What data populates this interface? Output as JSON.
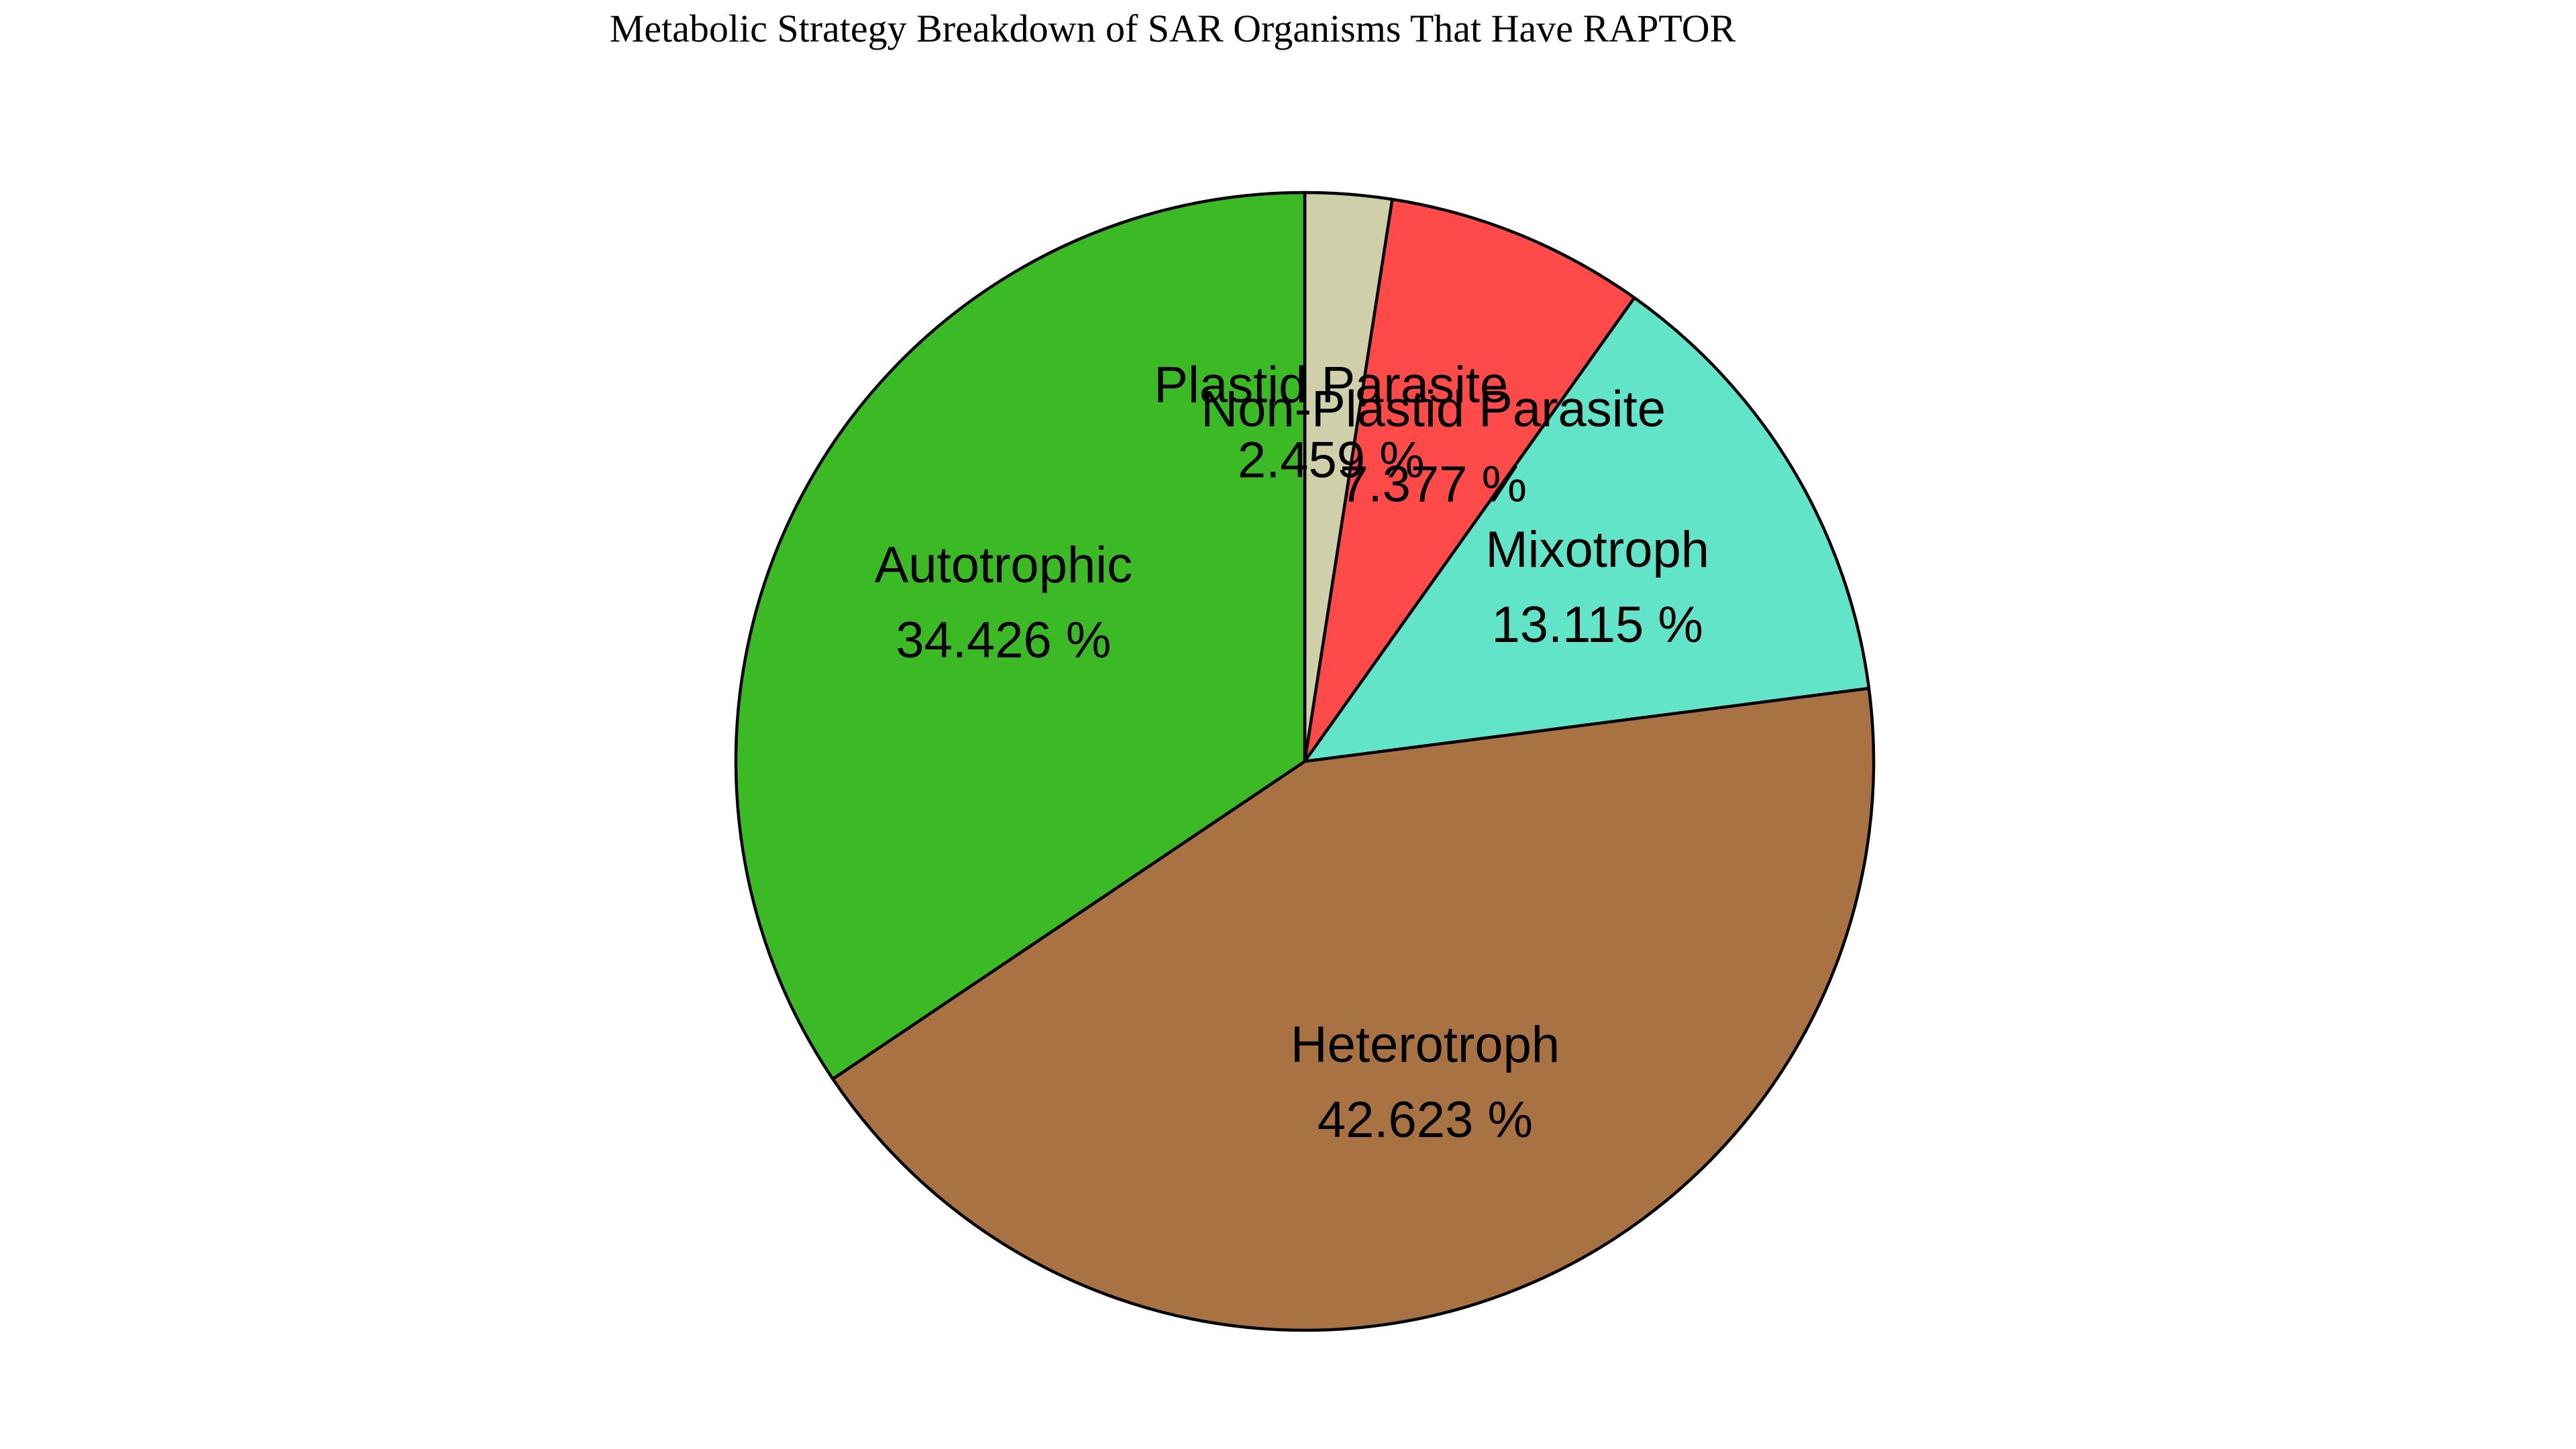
{
  "chart_data": {
    "type": "pie",
    "title": "Metabolic Strategy Breakdown of SAR Organisms That Have RAPTOR",
    "start_angle_deg": 90,
    "direction": "clockwise",
    "slices": [
      {
        "label": "Plastid Parasite",
        "value": 2.459,
        "pct_text": "2.459 %",
        "color": "#cfcfaa"
      },
      {
        "label": "Non-Plastid Parasite",
        "value": 7.377,
        "pct_text": "7.377 %",
        "color": "#ff4a4a"
      },
      {
        "label": "Mixotroph",
        "value": 13.115,
        "pct_text": "13.115 %",
        "color": "#62e4c8"
      },
      {
        "label": "Heterotroph",
        "value": 42.623,
        "pct_text": "42.623 %",
        "color": "#a87243"
      },
      {
        "label": "Autotrophic",
        "value": 34.426,
        "pct_text": "34.426 %",
        "color": "#3bba26"
      }
    ]
  }
}
